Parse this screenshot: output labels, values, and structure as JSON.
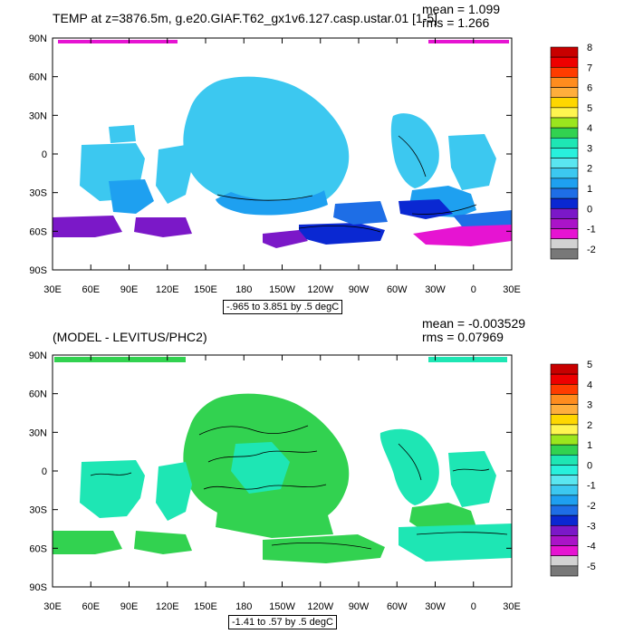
{
  "panels": [
    {
      "title": "TEMP at z=3876.5m, g.e20.GIAF.T62_gx1v6.127.casp.ustar.01 [1-5]",
      "mean": "mean = 1.099",
      "rms": "rms = 1.266",
      "range": "-.965 to 3.851 by .5 degC",
      "colorbar_labels": [
        "8",
        "7",
        "6",
        "5",
        "4",
        "3",
        "2",
        "1",
        "0",
        "-1",
        "-2"
      ],
      "colorbar_colors": [
        "#c80000",
        "#ee0000",
        "#ff3c00",
        "#ff8c1e",
        "#ffae3c",
        "#ffd700",
        "#fff550",
        "#9be61e",
        "#32d250",
        "#1ee6b4",
        "#28f0dc",
        "#5ae6f0",
        "#3cc8f0",
        "#1ea0f0",
        "#1e6ee6",
        "#0a28d2",
        "#7b18c8",
        "#aa14c8",
        "#e614d2",
        "#d2d2d2",
        "#787878"
      ],
      "land_color": "#ffffff"
    },
    {
      "title": "(MODEL - LEVITUS/PHC2)",
      "mean": "mean = -0.003529",
      "rms": "rms = 0.07969",
      "range": "-1.41 to .57 by .5 degC",
      "colorbar_labels": [
        "5",
        "4",
        "3",
        "2",
        "1",
        "0",
        "-1",
        "-2",
        "-3",
        "-4",
        "-5"
      ],
      "colorbar_colors": [
        "#c80000",
        "#ee0000",
        "#ff3c00",
        "#ff8c1e",
        "#ffae3c",
        "#ffd700",
        "#fff550",
        "#9be61e",
        "#32d250",
        "#1ee6b4",
        "#28f0dc",
        "#5ae6f0",
        "#3cc8f0",
        "#1ea0f0",
        "#1e6ee6",
        "#0a28d2",
        "#7b18c8",
        "#aa14c8",
        "#e614d2",
        "#d2d2d2",
        "#787878"
      ],
      "land_color": "#ffffff"
    }
  ],
  "axes": {
    "lat_labels": [
      "90N",
      "60N",
      "30N",
      "0",
      "30S",
      "60S",
      "90S"
    ],
    "lon_labels": [
      "30E",
      "60E",
      "90E",
      "120E",
      "150E",
      "180",
      "150W",
      "120W",
      "90W",
      "60W",
      "30W",
      "0",
      "30E"
    ]
  }
}
